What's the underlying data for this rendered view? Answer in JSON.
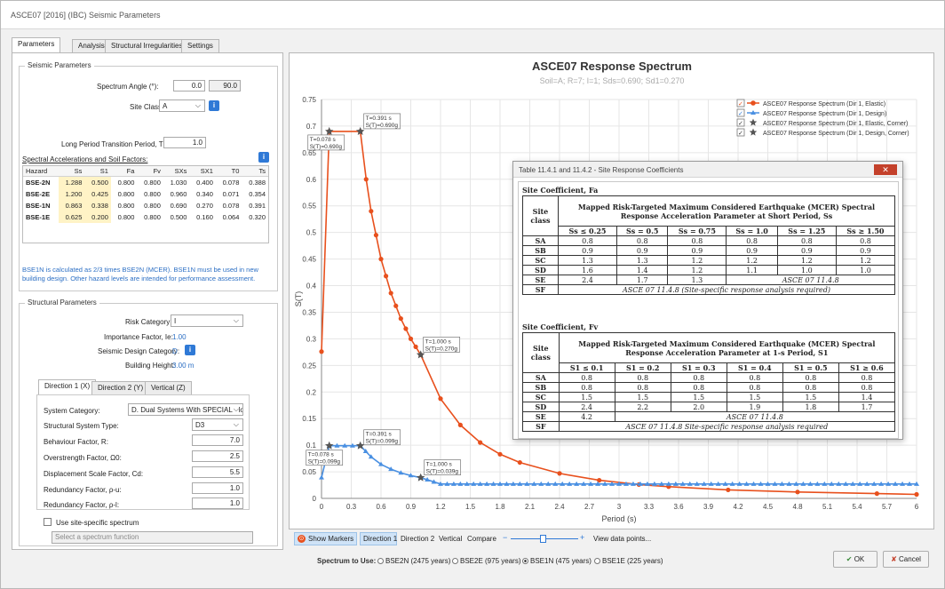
{
  "window": {
    "title": "ASCE07 [2016] (IBC) Seismic Parameters"
  },
  "tabs": [
    "Parameters",
    "Analysis",
    "Structural Irregularities",
    "Settings"
  ],
  "seismic": {
    "group_title": "Seismic Parameters",
    "spectrum_angle_label": "Spectrum Angle (°):",
    "spectrum_angle": "0.0",
    "spectrum_angle_2": "90.0",
    "site_class_label": "Site Class:",
    "site_class": "A",
    "tl_label": "Long Period Transition Period, TL:",
    "tl": "1.0",
    "accel_heading": "Spectral Accelerations and Soil Factors:",
    "table_headers": [
      "Hazard",
      "Ss",
      "S1",
      "Fa",
      "Fv",
      "SXs",
      "SX1",
      "T0",
      "Ts"
    ],
    "table_rows": [
      [
        "BSE-2N",
        "1.288",
        "0.500",
        "0.800",
        "0.800",
        "1.030",
        "0.400",
        "0.078",
        "0.388"
      ],
      [
        "BSE-2E",
        "1.200",
        "0.425",
        "0.800",
        "0.800",
        "0.960",
        "0.340",
        "0.071",
        "0.354"
      ],
      [
        "BSE-1N",
        "0.863",
        "0.338",
        "0.800",
        "0.800",
        "0.690",
        "0.270",
        "0.078",
        "0.391"
      ],
      [
        "BSE-1E",
        "0.625",
        "0.200",
        "0.800",
        "0.800",
        "0.500",
        "0.160",
        "0.064",
        "0.320"
      ]
    ],
    "note": "BSE1N is calculated as 2/3 times BSE2N (MCER). BSE1N must be used in new building design. Other hazard levels are intended for performance assessment."
  },
  "structural": {
    "group_title": "Structural Parameters",
    "risk_label": "Risk Category:",
    "risk": "I",
    "importance_label": "Importance Factor, Ie:",
    "importance": "1.00",
    "sdc_label": "Seismic Design Category:",
    "sdc": "D",
    "height_label": "Building Height:",
    "height": "3.00 m",
    "dir_tabs": [
      "Direction 1 (X)",
      "Direction 2 (Y)",
      "Vertical (Z)"
    ],
    "system_category_label": "System Category:",
    "system_category": "D. Dual Systems With SPECIAL Mor",
    "system_type_label": "Structural System Type:",
    "system_type": "D3",
    "r_label": "Behaviour Factor, R:",
    "r": "7.0",
    "omega_label": "Overstrength Factor, Ω0:",
    "omega": "2.5",
    "cd_label": "Displacement Scale Factor, Cd:",
    "cd": "5.5",
    "rho_u_label": "Redundancy Factor, ρ-u:",
    "rho_u": "1.0",
    "rho_l_label": "Redundancy Factor, ρ-l:",
    "rho_l": "1.0",
    "site_specific_label": "Use site-specific spectrum",
    "spectrum_function_placeholder": "Select a spectrum function"
  },
  "chart_data": {
    "type": "line",
    "title": "ASCE07 Response Spectrum",
    "subtitle": "Soil=A; R=7; I=1; Sds=0.690; Sd1=0.270",
    "xlabel": "Period (s)",
    "ylabel": "S(T)",
    "xlim": [
      0,
      6
    ],
    "ylim": [
      0,
      0.75
    ],
    "x_ticks": [
      "0",
      "0.3",
      "0.6",
      "0.9",
      "1.2",
      "1.5",
      "1.8",
      "2.1",
      "2.4",
      "2.7",
      "3",
      "3.3",
      "3.6",
      "3.9",
      "4.2",
      "4.5",
      "4.8",
      "5.1",
      "5.4",
      "5.7",
      "6"
    ],
    "y_ticks": [
      "0",
      "0.05",
      "0.1",
      "0.15",
      "0.2",
      "0.25",
      "0.3",
      "0.35",
      "0.4",
      "0.45",
      "0.5",
      "0.55",
      "0.6",
      "0.65",
      "0.7",
      "0.75"
    ],
    "grid": true,
    "legend_position": "top-right",
    "series": [
      {
        "name": "ASCE07 Response Spectrum (Dir 1, Elastic)",
        "color": "#e8501d",
        "marker": "circle",
        "points": [
          [
            0,
            0.276
          ],
          [
            0.078,
            0.69
          ],
          [
            0.391,
            0.69
          ],
          [
            0.45,
            0.6
          ],
          [
            0.5,
            0.54
          ],
          [
            0.6,
            0.45
          ],
          [
            0.7,
            0.386
          ],
          [
            0.8,
            0.338
          ],
          [
            0.9,
            0.3
          ],
          [
            1.0,
            0.27
          ],
          [
            1.2,
            0.1875
          ],
          [
            1.4,
            0.138
          ],
          [
            1.6,
            0.105
          ],
          [
            1.8,
            0.083
          ],
          [
            2.0,
            0.0675
          ],
          [
            2.4,
            0.047
          ],
          [
            2.8,
            0.034
          ],
          [
            3.2,
            0.026
          ],
          [
            3.5,
            0.022
          ],
          [
            4.1,
            0.016
          ],
          [
            4.8,
            0.012
          ],
          [
            5.6,
            0.009
          ],
          [
            6.0,
            0.0075
          ]
        ]
      },
      {
        "name": "ASCE07 Response Spectrum (Dir 1, Design)",
        "color": "#4a90e2",
        "marker": "triangle",
        "points": [
          [
            0,
            0.039
          ],
          [
            0.078,
            0.099
          ],
          [
            0.391,
            0.099
          ],
          [
            0.5,
            0.078
          ],
          [
            0.6,
            0.064
          ],
          [
            0.7,
            0.055
          ],
          [
            0.8,
            0.048
          ],
          [
            0.9,
            0.043
          ],
          [
            1.0,
            0.039
          ],
          [
            1.2,
            0.027
          ],
          [
            1.4,
            0.027
          ],
          [
            2.0,
            0.027
          ],
          [
            3.0,
            0.027
          ],
          [
            4.0,
            0.027
          ],
          [
            5.0,
            0.027
          ],
          [
            6.0,
            0.027
          ]
        ]
      },
      {
        "name": "ASCE07 Response Spectrum (Dir 1, Elastic, Corner)",
        "color": "#555555",
        "marker": "star",
        "points": [
          [
            0.078,
            0.69
          ],
          [
            0.391,
            0.69
          ],
          [
            1.0,
            0.27
          ]
        ]
      },
      {
        "name": "ASCE07 Response Spectrum (Dir 1, Design, Corner)",
        "color": "#555555",
        "marker": "star",
        "points": [
          [
            0.078,
            0.099
          ],
          [
            0.391,
            0.099
          ],
          [
            1.0,
            0.039
          ]
        ]
      }
    ],
    "annotations": [
      {
        "x": 0.078,
        "y": 0.69,
        "text": [
          "T=0.078 s",
          "S(T)=0.690g"
        ]
      },
      {
        "x": 0.391,
        "y": 0.69,
        "text": [
          "T=0.391 s",
          "S(T)=0.690g"
        ]
      },
      {
        "x": 1.0,
        "y": 0.27,
        "text": [
          "T=1.000 s",
          "S(T)=0.270g"
        ]
      },
      {
        "x": 0.078,
        "y": 0.099,
        "text": [
          "T=0.078 s",
          "S(T)=0.099g"
        ]
      },
      {
        "x": 0.391,
        "y": 0.099,
        "text": [
          "T=0.391 s",
          "S(T)=0.099g"
        ]
      },
      {
        "x": 1.0,
        "y": 0.039,
        "text": [
          "T=1.000 s",
          "S(T)=0.039g"
        ]
      }
    ]
  },
  "toolbar": {
    "show_markers": "Show Markers",
    "direction1": "Direction 1",
    "direction2": "Direction 2",
    "vertical": "Vertical",
    "compare": "Compare",
    "view_points": "View data points..."
  },
  "spectrum_use": {
    "label": "Spectrum to Use:",
    "options": [
      "BSE2N (2475 years)",
      "BSE2E (975 years)",
      "BSE1N (475 years)",
      "BSE1E (225 years)"
    ],
    "selected": "BSE1N (475 years)"
  },
  "buttons": {
    "ok": "OK",
    "cancel": "Cancel"
  },
  "dialog": {
    "title": "Table 11.4.1 and 11.4.2 - Site Response Coefficients",
    "fa_title": "Site Coefficient, Fa",
    "fa_header": "Mapped Risk-Targeted Maximum Considered Earthquake (MCER) Spectral Response Acceleration Parameter at Short Period, Ss",
    "fa_cols": [
      "Ss ≤ 0.25",
      "Ss = 0.5",
      "Ss = 0.75",
      "Ss = 1.0",
      "Ss = 1.25",
      "Ss ≥ 1.50"
    ],
    "fa_rows": [
      [
        "SA",
        "0.8",
        "0.8",
        "0.8",
        "0.8",
        "0.8",
        "0.8"
      ],
      [
        "SB",
        "0.9",
        "0.9",
        "0.9",
        "0.9",
        "0.9",
        "0.9"
      ],
      [
        "SC",
        "1.3",
        "1.3",
        "1.2",
        "1.2",
        "1.2",
        "1.2"
      ],
      [
        "SD",
        "1.6",
        "1.4",
        "1.2",
        "1.1",
        "1.0",
        "1.0"
      ]
    ],
    "fa_se": [
      "SE",
      "2.4",
      "1.7",
      "1.3",
      "ASCE 07 11.4.8"
    ],
    "fa_sf": [
      "SF",
      "ASCE 07 11.4.8 (Site-specific response analysis required)"
    ],
    "fv_title": "Site Coefficient, Fv",
    "fv_header": "Mapped Risk-Targeted Maximum Considered Earthquake (MCER) Spectral Response Acceleration Parameter at 1-s Period, S1",
    "fv_cols": [
      "S1 ≤ 0.1",
      "S1 = 0.2",
      "S1 = 0.3",
      "S1 = 0.4",
      "S1 = 0.5",
      "S1 ≥ 0.6"
    ],
    "fv_rows": [
      [
        "SA",
        "0.8",
        "0.8",
        "0.8",
        "0.8",
        "0.8",
        "0.8"
      ],
      [
        "SB",
        "0.8",
        "0.8",
        "0.8",
        "0.8",
        "0.8",
        "0.8"
      ],
      [
        "SC",
        "1.5",
        "1.5",
        "1.5",
        "1.5",
        "1.5",
        "1.4"
      ],
      [
        "SD",
        "2.4",
        "2.2",
        "2.0",
        "1.9",
        "1.8",
        "1.7"
      ]
    ],
    "fv_se": [
      "SE",
      "4.2",
      "ASCE 07 11.4.8"
    ],
    "fv_sf": [
      "SF",
      "ASCE 07 11.4.8 Site-specific response analysis required"
    ],
    "site_class_col": "Site class"
  }
}
